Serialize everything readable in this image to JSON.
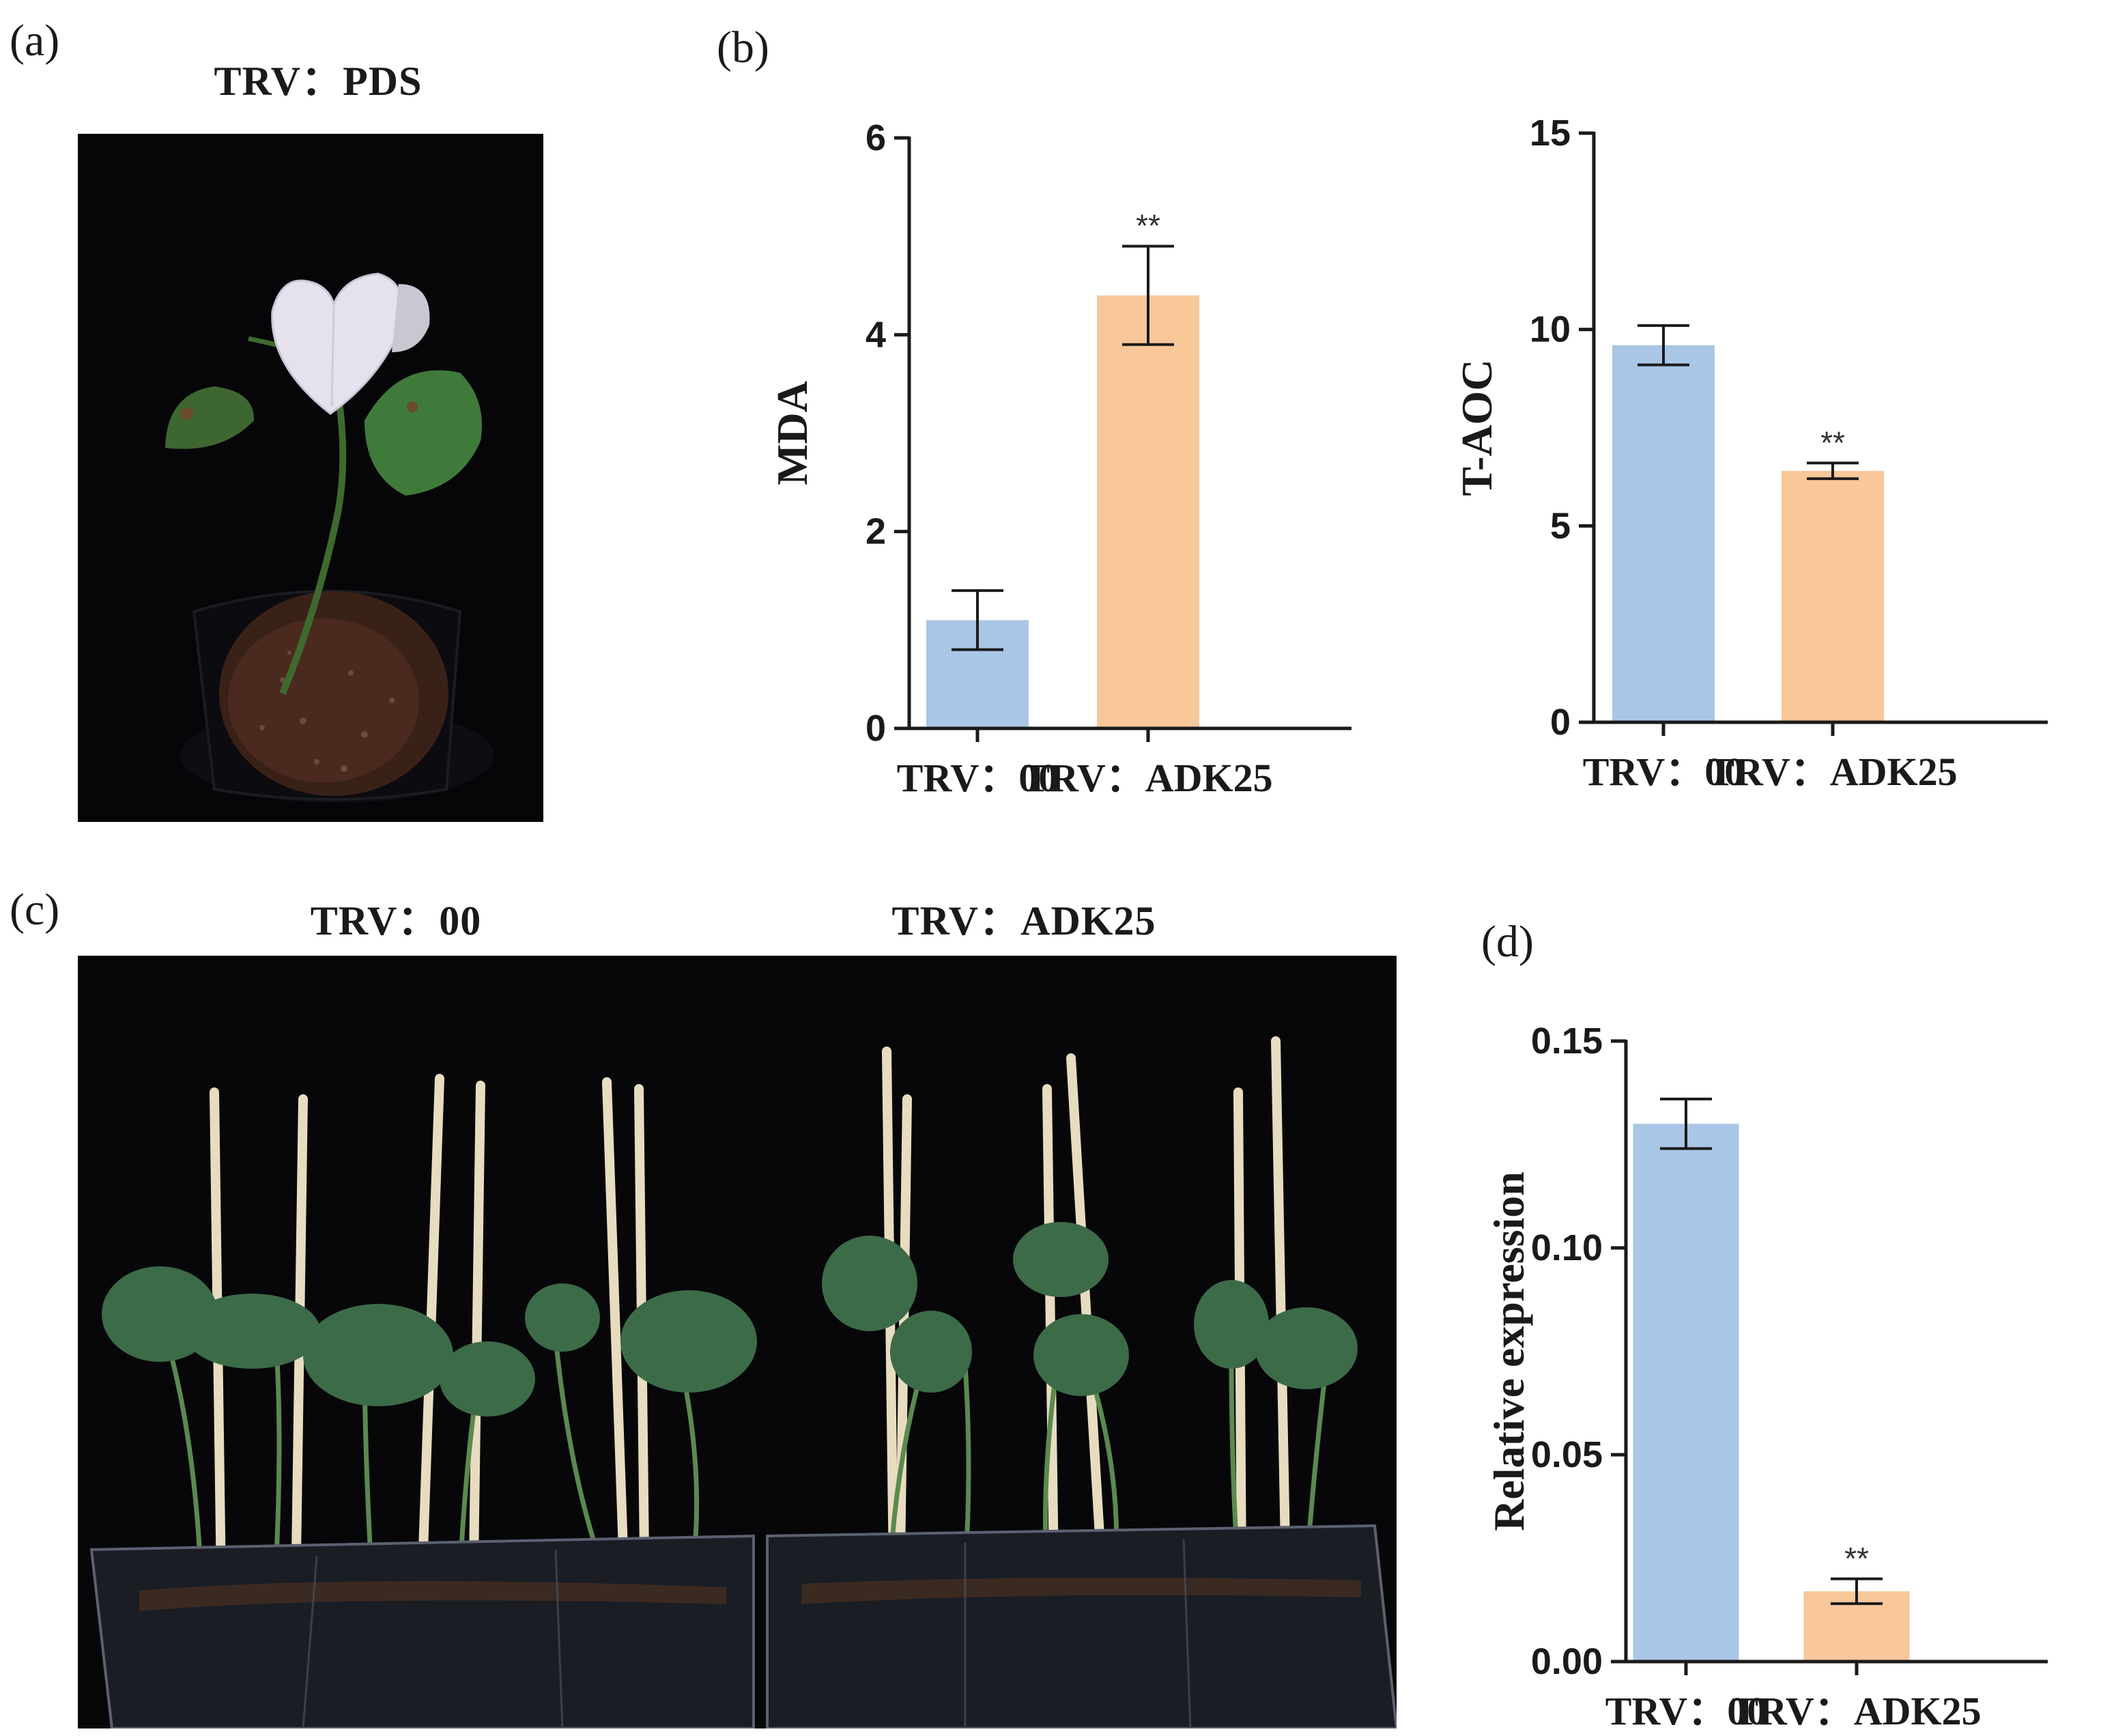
{
  "panels": {
    "a": {
      "letter": "(a)",
      "title": "TRV：PDS"
    },
    "b": {
      "letter": "(b)"
    },
    "c": {
      "letter": "(c)",
      "title_left": "TRV：00",
      "title_right": "TRV：ADK25"
    },
    "d": {
      "letter": "(d)"
    }
  },
  "colors": {
    "ctrl": "#aac6e6",
    "vigs": "#f8c79a",
    "axis": "#1a1a1a"
  },
  "chart_data": [
    {
      "id": "mda",
      "type": "bar",
      "categories": [
        "TRV：00",
        "TRV：ADK25"
      ],
      "values": [
        1.1,
        4.4
      ],
      "errors": [
        0.3,
        0.5
      ],
      "significance": [
        "",
        "**"
      ],
      "ylabel": "MDA",
      "ylim": [
        0,
        6
      ],
      "yticks": [
        0,
        2,
        4,
        6
      ],
      "ytick_labels": [
        "0",
        "2",
        "4",
        "6"
      ]
    },
    {
      "id": "taoc",
      "type": "bar",
      "categories": [
        "TRV：00",
        "TRV：ADK25"
      ],
      "values": [
        9.6,
        6.4
      ],
      "errors": [
        0.5,
        0.2
      ],
      "significance": [
        "",
        "**"
      ],
      "ylabel": "T-AOC",
      "ylim": [
        0,
        15
      ],
      "yticks": [
        0,
        5,
        10,
        15
      ],
      "ytick_labels": [
        "0",
        "5",
        "10",
        "15"
      ]
    },
    {
      "id": "expr",
      "type": "bar",
      "categories": [
        "TRV：00",
        "TRV：ADK25"
      ],
      "values": [
        0.13,
        0.017
      ],
      "errors": [
        0.006,
        0.003
      ],
      "significance": [
        "",
        "**"
      ],
      "ylabel": "Relative expression",
      "ylim": [
        0,
        0.15
      ],
      "yticks": [
        0,
        0.05,
        0.1,
        0.15
      ],
      "ytick_labels": [
        "0.00",
        "0.05",
        "0.10",
        "0.15"
      ]
    }
  ]
}
